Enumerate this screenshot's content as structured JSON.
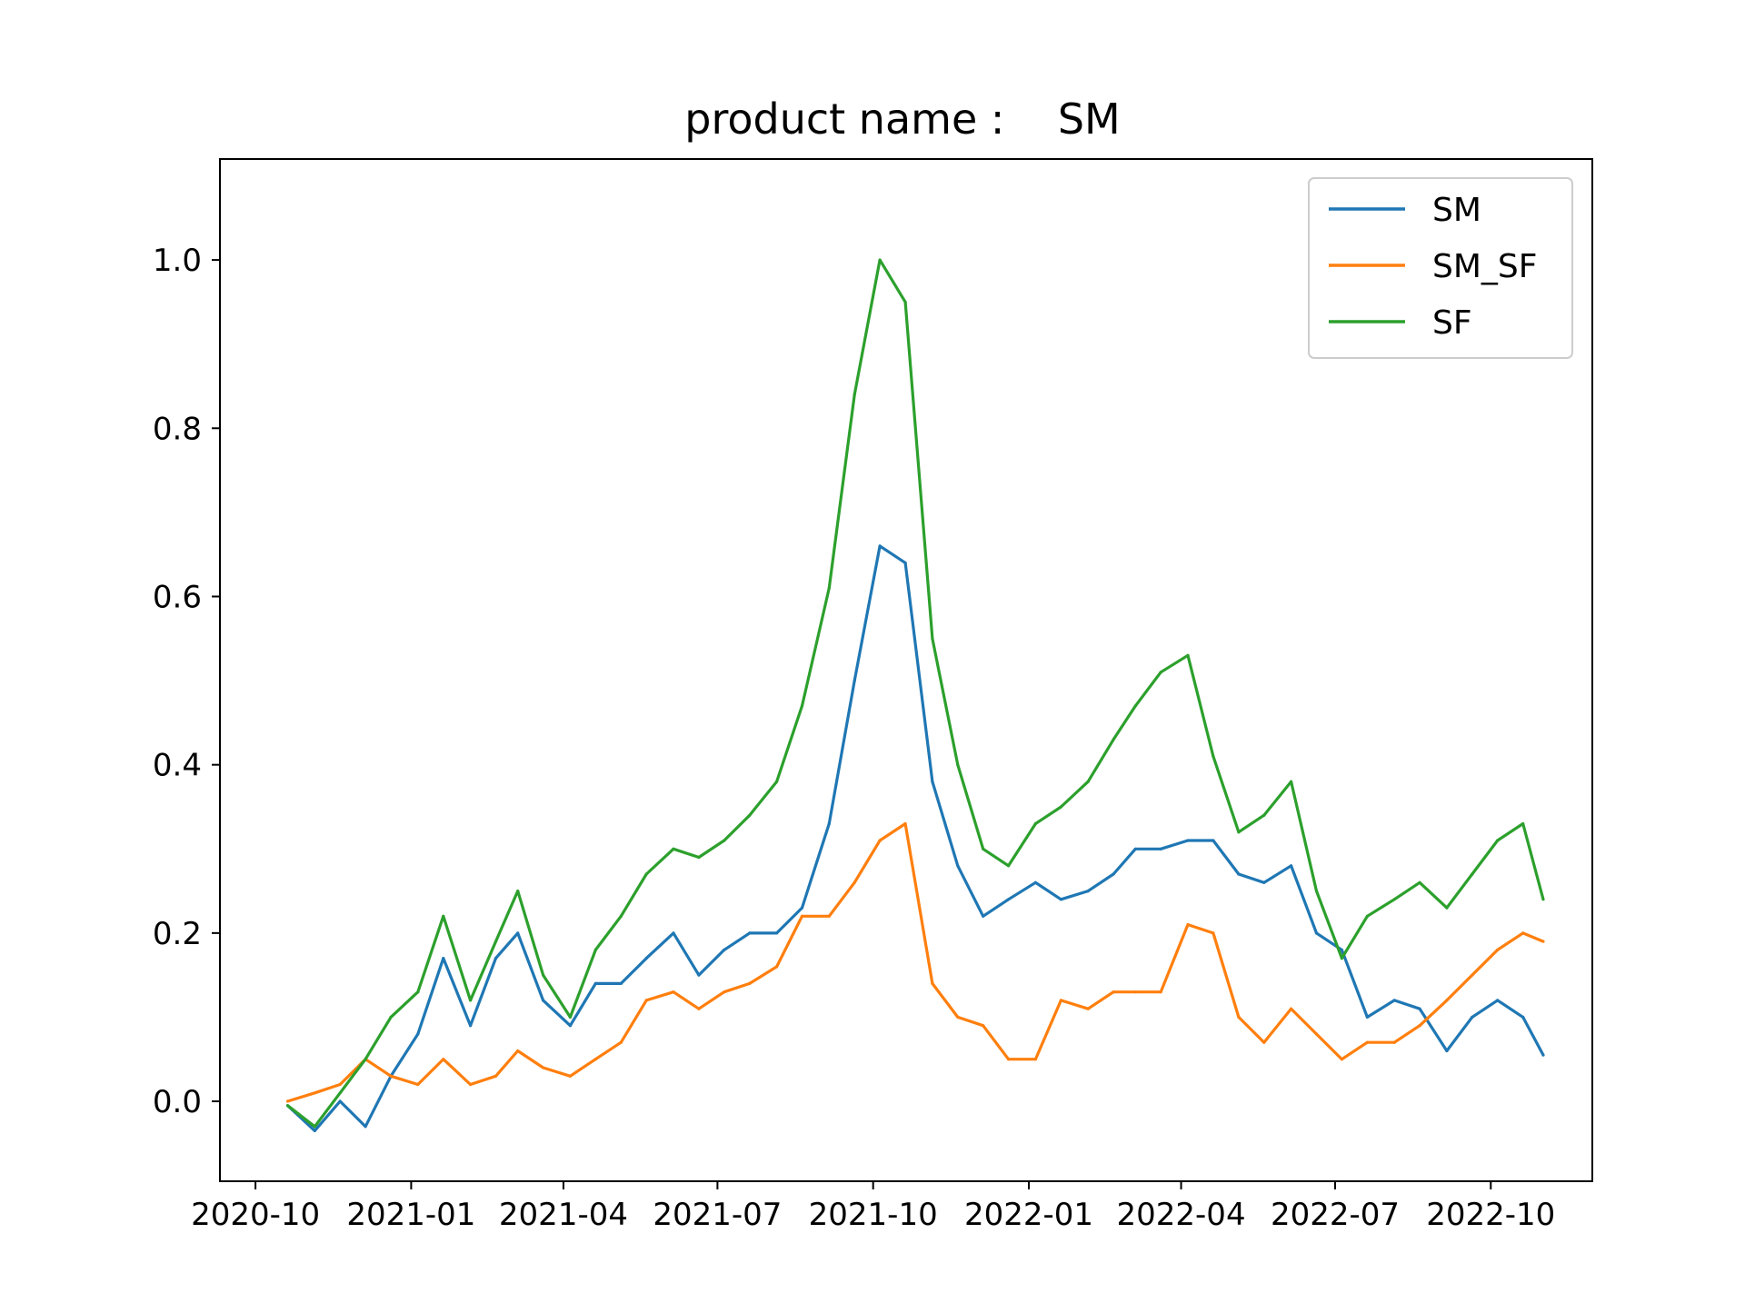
{
  "chart_data": {
    "type": "line",
    "title": "product name :    SM",
    "xlabel": "",
    "ylabel": "",
    "x_ticks": [
      "2020-10",
      "2021-01",
      "2021-04",
      "2021-07",
      "2021-10",
      "2022-01",
      "2022-04",
      "2022-07",
      "2022-10"
    ],
    "y_ticks": [
      "0.0",
      "0.2",
      "0.4",
      "0.6",
      "0.8",
      "1.0"
    ],
    "xlim": [
      "2020-09-10",
      "2022-11-30"
    ],
    "ylim": [
      -0.095,
      1.12
    ],
    "grid": false,
    "legend_position": "top-right",
    "x": [
      "2020-10-20",
      "2020-11-05",
      "2020-11-20",
      "2020-12-05",
      "2020-12-20",
      "2021-01-05",
      "2021-01-20",
      "2021-02-05",
      "2021-02-20",
      "2021-03-05",
      "2021-03-20",
      "2021-04-05",
      "2021-04-20",
      "2021-05-05",
      "2021-05-20",
      "2021-06-05",
      "2021-06-20",
      "2021-07-05",
      "2021-07-20",
      "2021-08-05",
      "2021-08-20",
      "2021-09-05",
      "2021-09-20",
      "2021-10-05",
      "2021-10-20",
      "2021-11-05",
      "2021-11-20",
      "2021-12-05",
      "2021-12-20",
      "2022-01-05",
      "2022-01-20",
      "2022-02-05",
      "2022-02-20",
      "2022-03-05",
      "2022-03-20",
      "2022-04-05",
      "2022-04-20",
      "2022-05-05",
      "2022-05-20",
      "2022-06-05",
      "2022-06-20",
      "2022-07-05",
      "2022-07-20",
      "2022-08-05",
      "2022-08-20",
      "2022-09-05",
      "2022-09-20",
      "2022-10-05",
      "2022-10-20",
      "2022-11-01"
    ],
    "series": [
      {
        "name": "SM",
        "color": "#1f77b4",
        "values": [
          -0.005,
          -0.035,
          0.0,
          -0.03,
          0.03,
          0.08,
          0.17,
          0.09,
          0.17,
          0.2,
          0.12,
          0.09,
          0.14,
          0.14,
          0.17,
          0.2,
          0.15,
          0.18,
          0.2,
          0.2,
          0.23,
          0.33,
          0.5,
          0.66,
          0.64,
          0.38,
          0.28,
          0.22,
          0.24,
          0.26,
          0.24,
          0.25,
          0.27,
          0.3,
          0.3,
          0.31,
          0.31,
          0.27,
          0.26,
          0.28,
          0.2,
          0.18,
          0.1,
          0.12,
          0.11,
          0.06,
          0.1,
          0.12,
          0.1,
          0.055
        ]
      },
      {
        "name": "SM_SF",
        "color": "#ff7f0e",
        "values": [
          0.0,
          0.01,
          0.02,
          0.05,
          0.03,
          0.02,
          0.05,
          0.02,
          0.03,
          0.06,
          0.04,
          0.03,
          0.05,
          0.07,
          0.12,
          0.13,
          0.11,
          0.13,
          0.14,
          0.16,
          0.22,
          0.22,
          0.26,
          0.31,
          0.33,
          0.14,
          0.1,
          0.09,
          0.05,
          0.05,
          0.12,
          0.11,
          0.13,
          0.13,
          0.13,
          0.21,
          0.2,
          0.1,
          0.07,
          0.11,
          0.08,
          0.05,
          0.07,
          0.07,
          0.09,
          0.12,
          0.15,
          0.18,
          0.2,
          0.19
        ]
      },
      {
        "name": "SF",
        "color": "#2ca02c",
        "values": [
          -0.005,
          -0.03,
          0.01,
          0.05,
          0.1,
          0.13,
          0.22,
          0.12,
          0.19,
          0.25,
          0.15,
          0.1,
          0.18,
          0.22,
          0.27,
          0.3,
          0.29,
          0.31,
          0.34,
          0.38,
          0.47,
          0.61,
          0.84,
          1.0,
          0.95,
          0.55,
          0.4,
          0.3,
          0.28,
          0.33,
          0.35,
          0.38,
          0.43,
          0.47,
          0.51,
          0.53,
          0.41,
          0.32,
          0.34,
          0.38,
          0.25,
          0.17,
          0.22,
          0.24,
          0.26,
          0.23,
          0.27,
          0.31,
          0.33,
          0.24
        ]
      }
    ]
  }
}
